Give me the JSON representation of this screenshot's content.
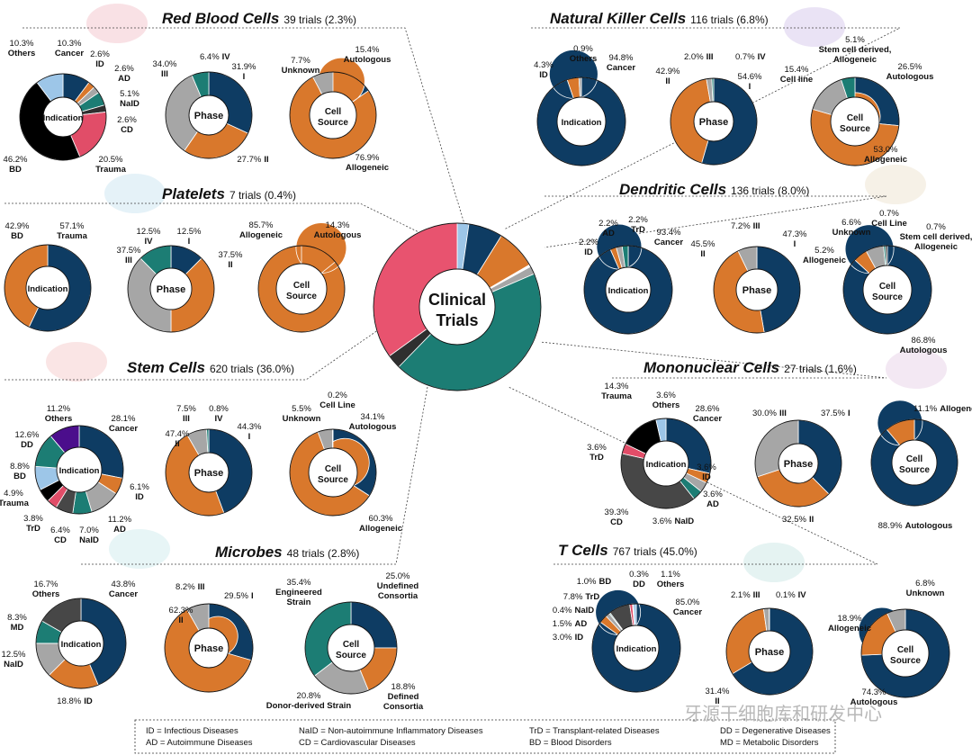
{
  "colors": {
    "navy": "#0e3c63",
    "orange": "#d9782c",
    "gray": "#a6a6a6",
    "teal": "#1c7d74",
    "black": "#000000",
    "red": "#e14d68",
    "lightblue": "#9dc6e8",
    "purple": "#4b0e8c",
    "darkgray": "#474747",
    "dark": "#2f2f2f",
    "pink": "#e8536f",
    "white": "#ffffff"
  },
  "center": {
    "line1": "Clinical",
    "line2": "Trials"
  },
  "inner_labels": {
    "indication": "Indication",
    "phase": "Phase",
    "cell": "Cell",
    "source": "Source"
  },
  "overview_chart": {
    "type": "pie",
    "title": "Clinical Trials",
    "slices": [
      {
        "label": "Red Blood Cells",
        "value": 2.3,
        "color": "lightblue"
      },
      {
        "label": "Natural Killer Cells",
        "value": 6.8,
        "color": "navy"
      },
      {
        "label": "Dendritic Cells",
        "value": 8.0,
        "color": "orange"
      },
      {
        "label": "Platelets",
        "value": 0.4,
        "color": "white"
      },
      {
        "label": "Mononuclear Cells",
        "value": 1.6,
        "color": "gray"
      },
      {
        "label": "T Cells",
        "value": 45.0,
        "color": "teal"
      },
      {
        "label": "Microbes",
        "value": 2.8,
        "color": "dark"
      },
      {
        "label": "Stem Cells",
        "value": 36.0,
        "color": "pink"
      }
    ]
  },
  "sections": [
    {
      "id": "rbc",
      "name": "Red Blood Cells",
      "count": "39 trials (2.3%)"
    },
    {
      "id": "nk",
      "name": "Natural Killer Cells",
      "count": "116 trials (6.8%)"
    },
    {
      "id": "plt",
      "name": "Platelets",
      "count": "7 trials (0.4%)"
    },
    {
      "id": "dc",
      "name": "Dendritic Cells",
      "count": "136 trials (8.0%)"
    },
    {
      "id": "stem",
      "name": "Stem Cells",
      "count": "620 trials (36.0%)"
    },
    {
      "id": "mono",
      "name": "Mononuclear Cells",
      "count": "27 trials (1.6%)"
    },
    {
      "id": "mic",
      "name": "Microbes",
      "count": "48 trials (2.8%)"
    },
    {
      "id": "tc",
      "name": "T Cells",
      "count": "767 trials (45.0%)"
    }
  ],
  "chart_data": [
    {
      "id": "rbc-ind",
      "type": "pie",
      "group": "Red Blood Cells",
      "title": "Indication",
      "slices": [
        {
          "label": "Cancer",
          "value": 10.3,
          "color": "navy",
          "pct": "10.3%"
        },
        {
          "label": "ID",
          "value": 2.6,
          "color": "orange",
          "pct": "2.6%"
        },
        {
          "label": "AD",
          "value": 2.6,
          "color": "gray",
          "pct": "2.6%"
        },
        {
          "label": "NaID",
          "value": 5.1,
          "color": "teal",
          "pct": "5.1%"
        },
        {
          "label": "CD",
          "value": 2.6,
          "color": "dark",
          "pct": "2.6%"
        },
        {
          "label": "Trauma",
          "value": 20.5,
          "color": "red",
          "pct": "20.5%"
        },
        {
          "label": "BD",
          "value": 46.2,
          "color": "black",
          "pct": "46.2%"
        },
        {
          "label": "Others",
          "value": 10.3,
          "color": "lightblue",
          "pct": "10.3%"
        }
      ]
    },
    {
      "id": "rbc-phase",
      "type": "pie",
      "group": "Red Blood Cells",
      "title": "Phase",
      "slices": [
        {
          "label": "I",
          "value": 31.9,
          "color": "navy",
          "pct": "31.9%"
        },
        {
          "label": "II",
          "value": 27.7,
          "color": "orange",
          "pct": "27.7%"
        },
        {
          "label": "III",
          "value": 34.0,
          "color": "gray",
          "pct": "34.0%"
        },
        {
          "label": "IV",
          "value": 6.4,
          "color": "teal",
          "pct": "6.4%"
        }
      ]
    },
    {
      "id": "rbc-src",
      "type": "pie",
      "group": "Red Blood Cells",
      "title": "Cell Source",
      "slices": [
        {
          "label": "Autologous",
          "value": 15.4,
          "color": "navy",
          "pct": "15.4%"
        },
        {
          "label": "Allogeneic",
          "value": 76.9,
          "color": "orange",
          "pct": "76.9%"
        },
        {
          "label": "Unknown",
          "value": 7.7,
          "color": "gray",
          "pct": "7.7%"
        }
      ]
    },
    {
      "id": "nk-ind",
      "type": "pie",
      "group": "Natural Killer Cells",
      "title": "Indication",
      "slices": [
        {
          "label": "Cancer",
          "value": 94.8,
          "color": "navy",
          "pct": "94.8%"
        },
        {
          "label": "ID",
          "value": 4.3,
          "color": "orange",
          "pct": "4.3%"
        },
        {
          "label": "Others",
          "value": 0.9,
          "color": "gray",
          "pct": "0.9%"
        }
      ]
    },
    {
      "id": "nk-phase",
      "type": "pie",
      "group": "Natural Killer Cells",
      "title": "Phase",
      "slices": [
        {
          "label": "I",
          "value": 54.6,
          "color": "navy",
          "pct": "54.6%"
        },
        {
          "label": "II",
          "value": 42.9,
          "color": "orange",
          "pct": "42.9%"
        },
        {
          "label": "III",
          "value": 2.0,
          "color": "gray",
          "pct": "2.0%"
        },
        {
          "label": "IV",
          "value": 0.7,
          "color": "teal",
          "pct": "0.7%"
        }
      ]
    },
    {
      "id": "nk-src",
      "type": "pie",
      "group": "Natural Killer Cells",
      "title": "Cell Source",
      "slices": [
        {
          "label": "Autologous",
          "value": 26.5,
          "color": "navy",
          "pct": "26.5%"
        },
        {
          "label": "Allogeneic",
          "value": 53.0,
          "color": "orange",
          "pct": "53.0%"
        },
        {
          "label": "Cell line",
          "value": 15.4,
          "color": "gray",
          "pct": "15.4%"
        },
        {
          "label": "Stem cell derived, Allogeneic",
          "value": 5.1,
          "color": "teal",
          "pct": "5.1%"
        }
      ]
    },
    {
      "id": "plt-ind",
      "type": "pie",
      "group": "Platelets",
      "title": "Indication",
      "slices": [
        {
          "label": "Trauma",
          "value": 57.1,
          "color": "navy",
          "pct": "57.1%"
        },
        {
          "label": "BD",
          "value": 42.9,
          "color": "orange",
          "pct": "42.9%"
        }
      ]
    },
    {
      "id": "plt-phase",
      "type": "pie",
      "group": "Platelets",
      "title": "Phase",
      "slices": [
        {
          "label": "I",
          "value": 12.5,
          "color": "navy",
          "pct": "12.5%"
        },
        {
          "label": "II",
          "value": 37.5,
          "color": "orange",
          "pct": "37.5%"
        },
        {
          "label": "III",
          "value": 37.5,
          "color": "gray",
          "pct": "37.5%"
        },
        {
          "label": "IV",
          "value": 12.5,
          "color": "teal",
          "pct": "12.5%"
        }
      ]
    },
    {
      "id": "plt-src",
      "type": "pie",
      "group": "Platelets",
      "title": "Cell Source",
      "slices": [
        {
          "label": "Autologous",
          "value": 14.3,
          "color": "navy",
          "pct": "14.3%"
        },
        {
          "label": "Allogeneic",
          "value": 85.7,
          "color": "orange",
          "pct": "85.7%"
        }
      ]
    },
    {
      "id": "dc-ind",
      "type": "pie",
      "group": "Dendritic Cells",
      "title": "Indication",
      "slices": [
        {
          "label": "Cancer",
          "value": 93.4,
          "color": "navy",
          "pct": "93.4%"
        },
        {
          "label": "ID",
          "value": 2.2,
          "color": "orange",
          "pct": "2.2%"
        },
        {
          "label": "AD",
          "value": 2.2,
          "color": "gray",
          "pct": "2.2%"
        },
        {
          "label": "TrD",
          "value": 2.2,
          "color": "teal",
          "pct": "2.2%"
        }
      ]
    },
    {
      "id": "dc-phase",
      "type": "pie",
      "group": "Dendritic Cells",
      "title": "Phase",
      "slices": [
        {
          "label": "I",
          "value": 47.3,
          "color": "navy",
          "pct": "47.3%"
        },
        {
          "label": "II",
          "value": 45.5,
          "color": "orange",
          "pct": "45.5%"
        },
        {
          "label": "III",
          "value": 7.2,
          "color": "gray",
          "pct": "7.2%"
        }
      ]
    },
    {
      "id": "dc-src",
      "type": "pie",
      "group": "Dendritic Cells",
      "title": "Cell Source",
      "slices": [
        {
          "label": "Autologous",
          "value": 86.8,
          "color": "navy",
          "pct": "86.8%"
        },
        {
          "label": "Allogeneic",
          "value": 5.2,
          "color": "orange",
          "pct": "5.2%"
        },
        {
          "label": "Unknown",
          "value": 6.6,
          "color": "gray",
          "pct": "6.6%"
        },
        {
          "label": "Cell Line",
          "value": 0.7,
          "color": "teal",
          "pct": "0.7%"
        },
        {
          "label": "Stem cell derived, Allogeneic",
          "value": 0.7,
          "color": "dark",
          "pct": "0.7%"
        }
      ]
    },
    {
      "id": "stem-ind",
      "type": "pie",
      "group": "Stem Cells",
      "title": "Indication",
      "slices": [
        {
          "label": "Cancer",
          "value": 28.1,
          "color": "navy",
          "pct": "28.1%"
        },
        {
          "label": "ID",
          "value": 6.1,
          "color": "orange",
          "pct": "6.1%"
        },
        {
          "label": "AD",
          "value": 11.2,
          "color": "gray",
          "pct": "11.2%"
        },
        {
          "label": "NaID",
          "value": 7.0,
          "color": "teal",
          "pct": "7.0%"
        },
        {
          "label": "CD",
          "value": 6.4,
          "color": "darkgray",
          "pct": "6.4%"
        },
        {
          "label": "TrD",
          "value": 3.8,
          "color": "red",
          "pct": "3.8%"
        },
        {
          "label": "Trauma",
          "value": 4.9,
          "color": "black",
          "pct": "4.9%"
        },
        {
          "label": "BD",
          "value": 8.8,
          "color": "lightblue",
          "pct": "8.8%"
        },
        {
          "label": "DD",
          "value": 12.6,
          "color": "teal",
          "pct": "12.6%"
        },
        {
          "label": "Others",
          "value": 11.2,
          "color": "purple",
          "pct": "11.2%"
        }
      ]
    },
    {
      "id": "stem-phase",
      "type": "pie",
      "group": "Stem Cells",
      "title": "Phase",
      "slices": [
        {
          "label": "I",
          "value": 44.3,
          "color": "navy",
          "pct": "44.3%"
        },
        {
          "label": "II",
          "value": 47.4,
          "color": "orange",
          "pct": "47.4%"
        },
        {
          "label": "III",
          "value": 7.5,
          "color": "gray",
          "pct": "7.5%"
        },
        {
          "label": "IV",
          "value": 0.8,
          "color": "teal",
          "pct": "0.8%"
        }
      ]
    },
    {
      "id": "stem-src",
      "type": "pie",
      "group": "Stem Cells",
      "title": "Cell Source",
      "slices": [
        {
          "label": "Autologous",
          "value": 34.1,
          "color": "navy",
          "pct": "34.1%"
        },
        {
          "label": "Allogeneic",
          "value": 60.3,
          "color": "orange",
          "pct": "60.3%"
        },
        {
          "label": "Unknown",
          "value": 5.5,
          "color": "gray",
          "pct": "5.5%"
        },
        {
          "label": "Cell Line",
          "value": 0.2,
          "color": "teal",
          "pct": "0.2%"
        }
      ]
    },
    {
      "id": "mono-ind",
      "type": "pie",
      "group": "Mononuclear Cells",
      "title": "Indication",
      "slices": [
        {
          "label": "Cancer",
          "value": 28.6,
          "color": "navy",
          "pct": "28.6%"
        },
        {
          "label": "ID",
          "value": 3.6,
          "color": "orange",
          "pct": "3.6%"
        },
        {
          "label": "AD",
          "value": 3.6,
          "color": "gray",
          "pct": "3.6%"
        },
        {
          "label": "NaID",
          "value": 3.6,
          "color": "teal",
          "pct": "3.6%"
        },
        {
          "label": "CD",
          "value": 39.3,
          "color": "darkgray",
          "pct": "39.3%"
        },
        {
          "label": "TrD",
          "value": 3.6,
          "color": "red",
          "pct": "3.6%"
        },
        {
          "label": "Trauma",
          "value": 14.3,
          "color": "black",
          "pct": "14.3%"
        },
        {
          "label": "Others",
          "value": 3.6,
          "color": "lightblue",
          "pct": "3.6%"
        }
      ]
    },
    {
      "id": "mono-phase",
      "type": "pie",
      "group": "Mononuclear Cells",
      "title": "Phase",
      "slices": [
        {
          "label": "I",
          "value": 37.5,
          "color": "navy",
          "pct": "37.5%"
        },
        {
          "label": "II",
          "value": 32.5,
          "color": "orange",
          "pct": "32.5%"
        },
        {
          "label": "III",
          "value": 30.0,
          "color": "gray",
          "pct": "30.0%"
        }
      ]
    },
    {
      "id": "mono-src",
      "type": "pie",
      "group": "Mononuclear Cells",
      "title": "Cell Source",
      "slices": [
        {
          "label": "Autologous",
          "value": 88.9,
          "color": "navy",
          "pct": "88.9%"
        },
        {
          "label": "Allogeneic",
          "value": 11.1,
          "color": "orange",
          "pct": "11.1%"
        }
      ]
    },
    {
      "id": "mic-ind",
      "type": "pie",
      "group": "Microbes",
      "title": "Indication",
      "slices": [
        {
          "label": "Cancer",
          "value": 43.8,
          "color": "navy",
          "pct": "43.8%"
        },
        {
          "label": "ID",
          "value": 18.8,
          "color": "orange",
          "pct": "18.8%"
        },
        {
          "label": "NaID",
          "value": 12.5,
          "color": "gray",
          "pct": "12.5%"
        },
        {
          "label": "MD",
          "value": 8.3,
          "color": "teal",
          "pct": "8.3%"
        },
        {
          "label": "Others",
          "value": 16.7,
          "color": "darkgray",
          "pct": "16.7%"
        }
      ]
    },
    {
      "id": "mic-phase",
      "type": "pie",
      "group": "Microbes",
      "title": "Phase",
      "slices": [
        {
          "label": "I",
          "value": 29.5,
          "color": "navy",
          "pct": "29.5%"
        },
        {
          "label": "II",
          "value": 62.3,
          "color": "orange",
          "pct": "62.3%"
        },
        {
          "label": "III",
          "value": 8.2,
          "color": "gray",
          "pct": "8.2%"
        }
      ]
    },
    {
      "id": "mic-src",
      "type": "pie",
      "group": "Microbes",
      "title": "Cell Source",
      "slices": [
        {
          "label": "Undefined Consortia",
          "value": 25.0,
          "color": "navy",
          "pct": "25.0%"
        },
        {
          "label": "Defined Consortia",
          "value": 18.8,
          "color": "orange",
          "pct": "18.8%"
        },
        {
          "label": "Donor-derived Strain",
          "value": 20.8,
          "color": "gray",
          "pct": "20.8%"
        },
        {
          "label": "Engineered Strain",
          "value": 35.4,
          "color": "teal",
          "pct": "35.4%"
        }
      ]
    },
    {
      "id": "tc-ind",
      "type": "pie",
      "group": "T Cells",
      "title": "Indication",
      "slices": [
        {
          "label": "Cancer",
          "value": 85.0,
          "color": "navy",
          "pct": "85.0%"
        },
        {
          "label": "ID",
          "value": 3.0,
          "color": "orange",
          "pct": "3.0%"
        },
        {
          "label": "AD",
          "value": 1.5,
          "color": "gray",
          "pct": "1.5%"
        },
        {
          "label": "NaID",
          "value": 0.4,
          "color": "teal",
          "pct": "0.4%"
        },
        {
          "label": "TrD",
          "value": 7.8,
          "color": "darkgray",
          "pct": "7.8%"
        },
        {
          "label": "BD",
          "value": 1.0,
          "color": "red",
          "pct": "1.0%"
        },
        {
          "label": "DD",
          "value": 0.3,
          "color": "purple",
          "pct": "0.3%"
        },
        {
          "label": "Others",
          "value": 1.1,
          "color": "lightblue",
          "pct": "1.1%"
        }
      ]
    },
    {
      "id": "tc-phase",
      "type": "pie",
      "group": "T Cells",
      "title": "Phase",
      "slices": [
        {
          "label": "I",
          "value": 66.4,
          "color": "navy",
          "pct": "66.4%"
        },
        {
          "label": "II",
          "value": 31.4,
          "color": "orange",
          "pct": "31.4%"
        },
        {
          "label": "III",
          "value": 2.1,
          "color": "gray",
          "pct": "2.1%"
        },
        {
          "label": "IV",
          "value": 0.1,
          "color": "teal",
          "pct": "0.1%"
        }
      ]
    },
    {
      "id": "tc-src",
      "type": "pie",
      "group": "T Cells",
      "title": "Cell Source",
      "slices": [
        {
          "label": "Autologous",
          "value": 74.3,
          "color": "navy",
          "pct": "74.3%"
        },
        {
          "label": "Allogeneic",
          "value": 18.9,
          "color": "orange",
          "pct": "18.9%"
        },
        {
          "label": "Unknown",
          "value": 6.8,
          "color": "gray",
          "pct": "6.8%"
        }
      ]
    }
  ],
  "legend": [
    "ID = Infectious Diseases",
    "NaID = Non-autoimmune Inflammatory Diseases",
    "TrD = Transplant-related Diseases",
    "DD = Degenerative Diseases",
    "AD = Autoimmune Diseases",
    "CD = Cardiovascular Diseases",
    "BD = Blood Disorders",
    "MD = Metabolic Disorders"
  ],
  "watermark": "牙源干细胞库和研发中心"
}
